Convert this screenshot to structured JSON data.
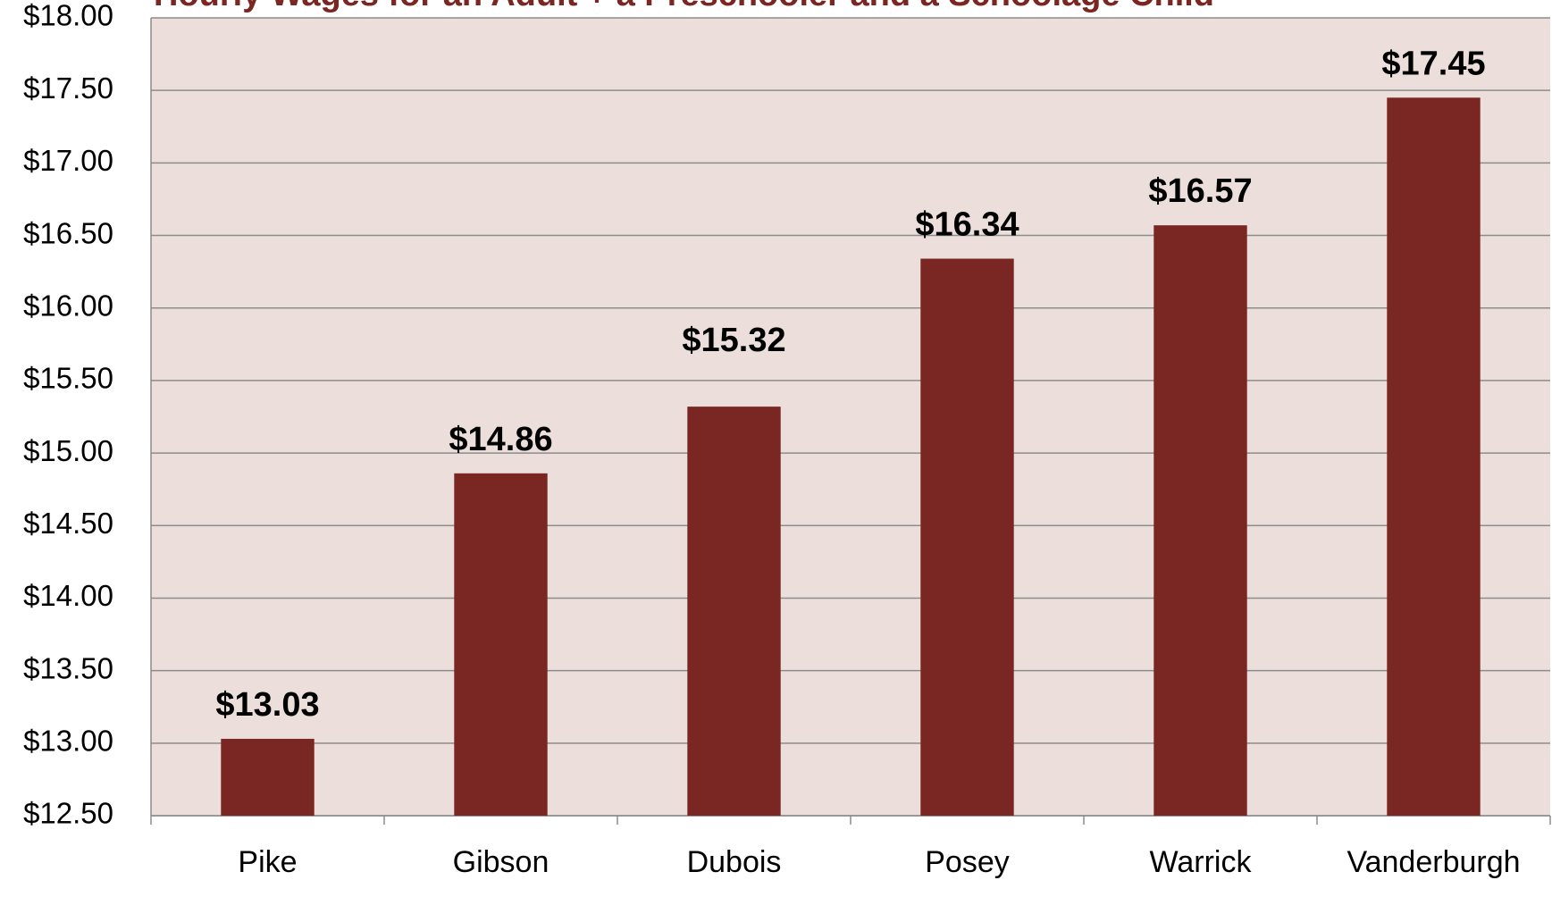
{
  "chart_data": {
    "type": "bar",
    "title": "Hourly Wages for an Adult + a Preschooler and a Schoolage Child",
    "categories": [
      "Pike",
      "Gibson",
      "Dubois",
      "Posey",
      "Warrick",
      "Vanderburgh"
    ],
    "values": [
      13.03,
      14.86,
      15.32,
      16.34,
      16.57,
      17.45
    ],
    "value_labels": [
      "$13.03",
      "$14.86",
      "$15.32",
      "$16.34",
      "$16.57",
      "$17.45"
    ],
    "color": "#7a2623",
    "ylim": [
      12.5,
      18
    ],
    "yticks": [
      {
        "value": 12.5,
        "label": "$12.50"
      },
      {
        "value": 13,
        "label": "$13.00"
      },
      {
        "value": 13.5,
        "label": "$13.50"
      },
      {
        "value": 14,
        "label": "$14.00"
      },
      {
        "value": 14.5,
        "label": "$14.50"
      },
      {
        "value": 15,
        "label": "$15.00"
      },
      {
        "value": 15.5,
        "label": "$15.50"
      },
      {
        "value": 16,
        "label": "$16.00"
      },
      {
        "value": 16.5,
        "label": "$16.50"
      },
      {
        "value": 17,
        "label": "$17.00"
      },
      {
        "value": 17.5,
        "label": "$17.50"
      },
      {
        "value": 18,
        "label": "$18.00"
      }
    ],
    "grid": true
  }
}
